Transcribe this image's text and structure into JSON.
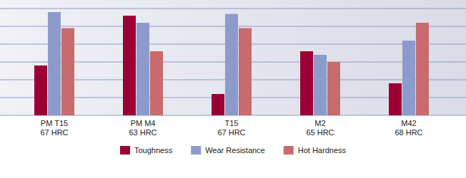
{
  "chart_data": {
    "type": "bar",
    "categories": [
      "PM T15\n67 HRC",
      "PM M4\n63 HRC",
      "T15\n67 HRC",
      "M2\n65 HRC",
      "M42\n68 HRC"
    ],
    "series": [
      {
        "name": "Toughness",
        "color": "#9b0034",
        "values": [
          2.8,
          5.6,
          1.2,
          3.6,
          1.8
        ]
      },
      {
        "name": "Wear Resistance",
        "color": "#8c9bcb",
        "values": [
          5.8,
          5.2,
          5.7,
          3.4,
          4.2
        ]
      },
      {
        "name": "Hot Hardness",
        "color": "#c86b6e",
        "values": [
          4.9,
          3.6,
          4.9,
          3.0,
          5.2
        ]
      }
    ],
    "ylim": [
      0,
      6
    ],
    "yticks": [
      0,
      1,
      2,
      3,
      4,
      5,
      6
    ],
    "grid": true,
    "tick_labels": "x",
    "legend": "bottom"
  }
}
